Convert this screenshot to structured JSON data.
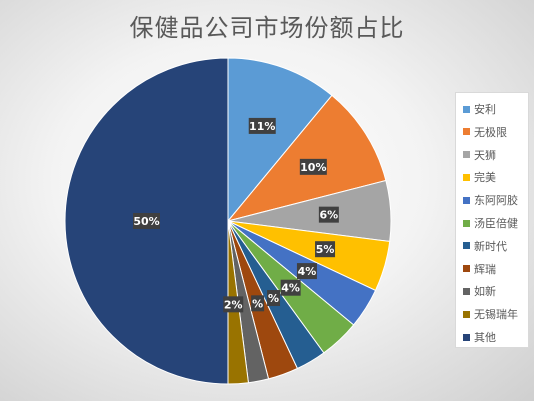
{
  "chart_data": {
    "type": "pie",
    "title": "保健品公司市场份额占比",
    "categories": [
      "安利",
      "无极限",
      "天狮",
      "完美",
      "东阿阿胶",
      "汤臣倍健",
      "新时代",
      "辉瑞",
      "如新",
      "无锡瑞年",
      "其他"
    ],
    "values": [
      11,
      10,
      6,
      5,
      4,
      4,
      3,
      3,
      2,
      2,
      50
    ],
    "data_labels": [
      "11%",
      "10%",
      "6%",
      "5%",
      "4%",
      "4%",
      "%",
      "%",
      "",
      "2%",
      "50%"
    ],
    "colors": [
      "#5b9bd5",
      "#ed7d31",
      "#a5a5a5",
      "#ffc000",
      "#4472c4",
      "#70ad47",
      "#255e91",
      "#9e480e",
      "#636363",
      "#997300",
      "#264478"
    ],
    "legend": "right",
    "start_angle": "12 o'clock",
    "direction": "clockwise"
  }
}
